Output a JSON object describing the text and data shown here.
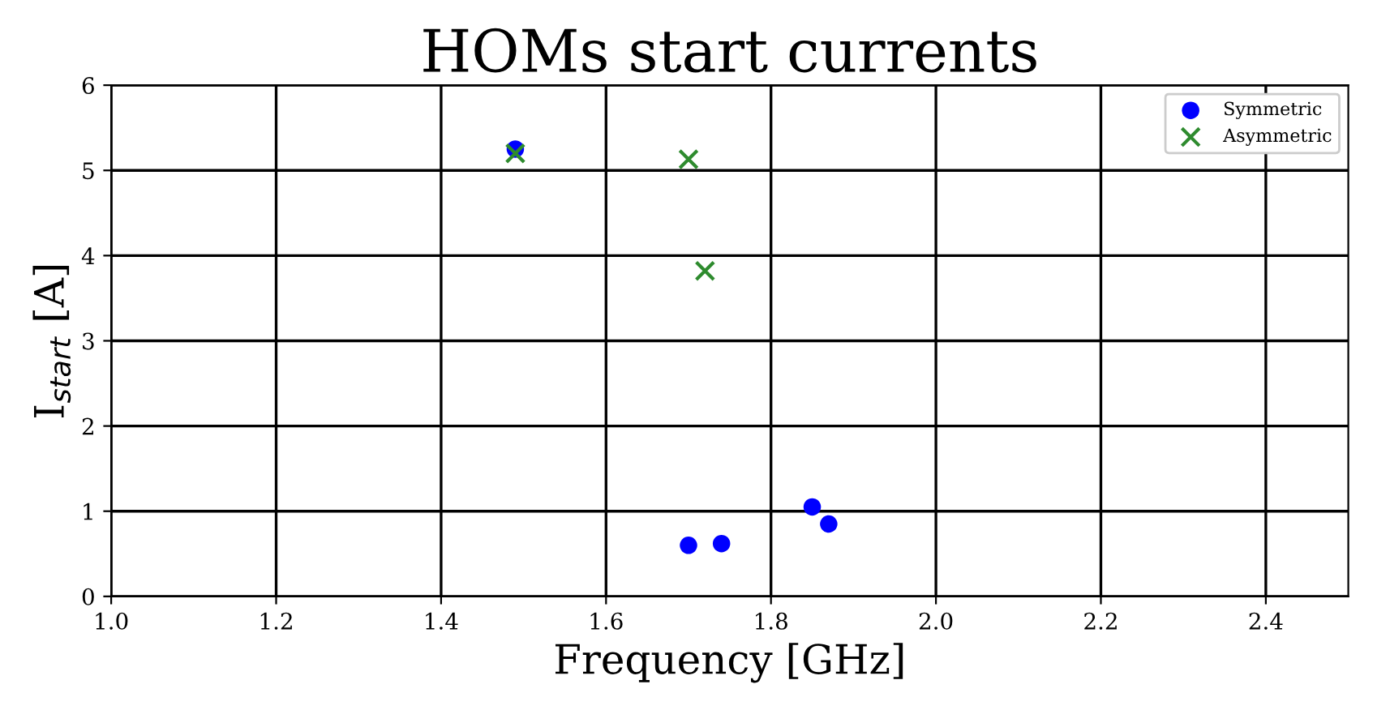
{
  "chart_data": {
    "type": "scatter",
    "title": "HOMs start currents",
    "xlabel": "Frequency [GHz]",
    "ylabel": "I$_{start}$ [A]",
    "series": [
      {
        "name": "Symmetric",
        "color": "#0000ff",
        "marker": "circle",
        "x": [
          1.49,
          1.7,
          1.74,
          1.85,
          1.87
        ],
        "values": [
          5.25,
          0.6,
          0.62,
          1.05,
          0.85
        ]
      },
      {
        "name": "Asymmetric",
        "color": "#2e8b2e",
        "marker": "cross",
        "x": [
          1.49,
          1.7,
          1.72
        ],
        "values": [
          5.2,
          5.13,
          3.82
        ]
      }
    ],
    "xlim": [
      1.0,
      2.5
    ],
    "xticks": [
      {
        "value": 1,
        "label": "1.0"
      },
      1.2,
      1.4,
      1.6,
      1.8,
      {
        "value": 2,
        "label": "2.0"
      },
      2.2,
      2.4
    ],
    "ylim": [
      0,
      6
    ],
    "yticks": [
      0,
      1,
      2,
      3,
      4,
      5,
      6
    ],
    "grid": true,
    "legend": "top right"
  }
}
